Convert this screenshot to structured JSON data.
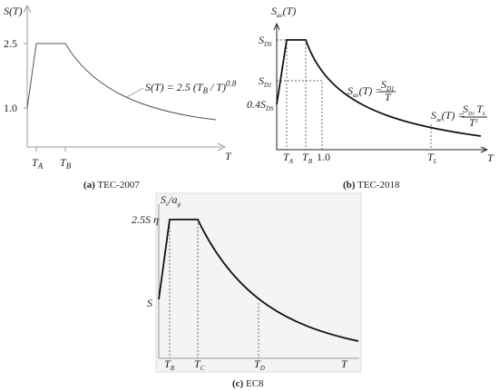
{
  "panels": [
    {
      "y_label": "S(T)",
      "y_ticks": [
        "2.5",
        "1.0"
      ],
      "x_labels": [
        [
          "T",
          "A"
        ],
        [
          "T",
          "B"
        ]
      ],
      "x_axis": "T",
      "formula": [
        "S(T) = 2.5 (T",
        "B",
        " / T)",
        "0.8"
      ],
      "caption": [
        "(a)",
        "TEC-2007"
      ]
    },
    {
      "y_label": [
        "S",
        "ae",
        "(T)"
      ],
      "y_ticks": [
        [
          "S",
          "DS"
        ],
        [
          "S",
          "D1"
        ],
        [
          "0.4S",
          "DS"
        ]
      ],
      "x_labels": [
        [
          "T",
          "A"
        ],
        [
          "T",
          "B"
        ],
        [
          "1.0"
        ],
        [
          "T",
          "L"
        ]
      ],
      "x_axis": "T",
      "formula1": {
        "lhs": [
          "S",
          "ae",
          "(T) ="
        ],
        "num": [
          "S",
          "D1"
        ],
        "den": "T"
      },
      "formula2": {
        "lhs": [
          "S",
          "ae",
          "(T) ="
        ],
        "num": [
          "S",
          "D1",
          "T",
          "L"
        ],
        "den": [
          "T",
          "2"
        ]
      },
      "caption": [
        "(b)",
        "TEC-2018"
      ]
    },
    {
      "y_label": [
        "S",
        "e",
        "/a",
        "g"
      ],
      "y_ticks": [
        "2.5S η",
        "S"
      ],
      "x_labels": [
        [
          "T",
          "B"
        ],
        [
          "T",
          "C"
        ],
        [
          "T",
          "D"
        ],
        [
          "T"
        ]
      ],
      "caption": [
        "(c)",
        "EC8"
      ]
    }
  ]
}
